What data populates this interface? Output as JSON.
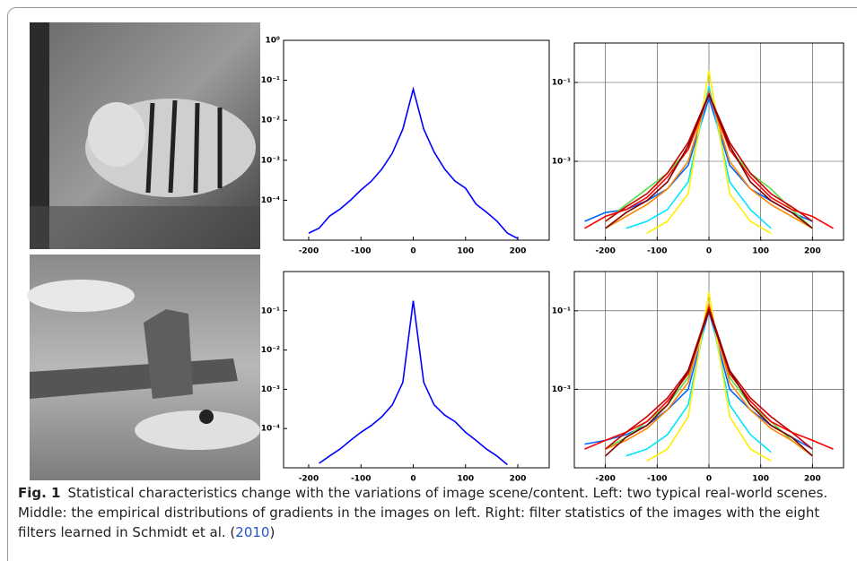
{
  "chart_data": [
    {
      "type": "line",
      "yscale": "log",
      "grid": false,
      "color": "#0000ff",
      "x": [
        -200,
        -180,
        -160,
        -140,
        -120,
        -100,
        -80,
        -60,
        -40,
        -20,
        0,
        20,
        40,
        60,
        80,
        100,
        120,
        140,
        160,
        180,
        200
      ],
      "values": [
        1.5e-05,
        2e-05,
        4e-05,
        6e-05,
        0.0001,
        0.00018,
        0.0003,
        0.0006,
        0.0015,
        0.006,
        0.06,
        0.006,
        0.0016,
        0.0006,
        0.0003,
        0.0002,
        8e-05,
        5e-05,
        3e-05,
        1.5e-05,
        1.1e-05
      ],
      "xlim": [
        -248,
        260
      ],
      "ylim": [
        1e-05,
        1
      ],
      "xticks": [
        -200,
        -100,
        0,
        100,
        200
      ],
      "yticks": [
        {
          "value": 1,
          "label": "10⁰"
        },
        {
          "value": 0.1,
          "label": "10⁻¹"
        },
        {
          "value": 0.01,
          "label": "10⁻²"
        },
        {
          "value": 0.001,
          "label": "10⁻³"
        },
        {
          "value": 0.0001,
          "label": "10⁻⁴"
        }
      ]
    },
    {
      "type": "line",
      "yscale": "log",
      "grid": true,
      "x": [
        -240,
        -200,
        -160,
        -120,
        -80,
        -40,
        0,
        40,
        80,
        120,
        160,
        200,
        240
      ],
      "series": [
        {
          "color": "#0066ff",
          "values": [
            3e-05,
            5e-05,
            6e-05,
            0.0001,
            0.0002,
            0.0008,
            0.04,
            0.0008,
            0.0002,
            0.0001,
            5e-05,
            3e-05,
            null
          ]
        },
        {
          "color": "#00e5ff",
          "values": [
            null,
            null,
            2e-05,
            3e-05,
            6e-05,
            0.0003,
            0.08,
            0.0003,
            6e-05,
            2e-05,
            null,
            null,
            null
          ]
        },
        {
          "color": "#55dd44",
          "values": [
            null,
            3e-05,
            8e-05,
            0.0002,
            0.0005,
            0.002,
            0.05,
            0.002,
            0.0005,
            0.0002,
            6e-05,
            2e-05,
            null
          ]
        },
        {
          "color": "#ffee00",
          "values": [
            null,
            null,
            null,
            1.5e-05,
            3e-05,
            0.00015,
            0.2,
            0.00015,
            3e-05,
            1.5e-05,
            null,
            null,
            null
          ]
        },
        {
          "color": "#ff8800",
          "values": [
            null,
            2e-05,
            4e-05,
            8e-05,
            0.0002,
            0.001,
            0.06,
            0.001,
            0.0002,
            8e-05,
            4e-05,
            2e-05,
            null
          ]
        },
        {
          "color": "#ff0000",
          "values": [
            2e-05,
            4e-05,
            6e-05,
            0.00012,
            0.0004,
            0.002,
            0.05,
            0.002,
            0.0004,
            0.00012,
            6e-05,
            4e-05,
            2e-05
          ]
        },
        {
          "color": "#cc0000",
          "values": [
            null,
            3e-05,
            7e-05,
            0.00015,
            0.0005,
            0.003,
            0.05,
            0.003,
            0.0005,
            0.00015,
            7e-05,
            3e-05,
            null
          ]
        },
        {
          "color": "#800000",
          "values": [
            null,
            2e-05,
            5e-05,
            0.0001,
            0.0003,
            0.0025,
            0.05,
            0.0025,
            0.0003,
            0.0001,
            5e-05,
            2e-05,
            null
          ]
        }
      ],
      "xlim": [
        -260,
        260
      ],
      "ylim": [
        1e-05,
        1
      ],
      "xticks": [
        -200,
        -100,
        0,
        100,
        200
      ],
      "yticks": [
        {
          "value": 0.1,
          "label": "10⁻¹"
        },
        {
          "value": 0.001,
          "label": "10⁻³"
        }
      ]
    },
    {
      "type": "line",
      "yscale": "log",
      "grid": false,
      "color": "#0000ff",
      "x": [
        -200,
        -180,
        -160,
        -140,
        -120,
        -100,
        -80,
        -60,
        -40,
        -20,
        0,
        20,
        40,
        60,
        80,
        100,
        120,
        140,
        160,
        180,
        200
      ],
      "values": [
        null,
        1.3e-05,
        2e-05,
        3e-05,
        5e-05,
        8e-05,
        0.00012,
        0.0002,
        0.0004,
        0.0015,
        0.18,
        0.0015,
        0.0004,
        0.00022,
        0.00015,
        8e-05,
        5e-05,
        3e-05,
        2e-05,
        1.2e-05,
        null
      ],
      "xlim": [
        -248,
        260
      ],
      "ylim": [
        1e-05,
        1
      ],
      "xticks": [
        -200,
        -100,
        0,
        100,
        200
      ],
      "yticks": [
        {
          "value": 0.1,
          "label": "10⁻¹"
        },
        {
          "value": 0.01,
          "label": "10⁻²"
        },
        {
          "value": 0.001,
          "label": "10⁻³"
        },
        {
          "value": 0.0001,
          "label": "10⁻⁴"
        }
      ]
    },
    {
      "type": "line",
      "yscale": "log",
      "grid": true,
      "x": [
        -240,
        -200,
        -160,
        -120,
        -80,
        -40,
        0,
        40,
        80,
        120,
        160,
        200,
        240
      ],
      "series": [
        {
          "color": "#0066ff",
          "values": [
            4e-05,
            5e-05,
            7e-05,
            0.00012,
            0.0003,
            0.001,
            0.1,
            0.001,
            0.0003,
            0.00012,
            6e-05,
            3e-05,
            null
          ]
        },
        {
          "color": "#00e5ff",
          "values": [
            null,
            null,
            2e-05,
            3e-05,
            7e-05,
            0.0004,
            0.15,
            0.0004,
            7e-05,
            2.5e-05,
            null,
            null,
            null
          ]
        },
        {
          "color": "#55dd44",
          "values": [
            null,
            3e-05,
            6e-05,
            0.00015,
            0.0004,
            0.002,
            0.12,
            0.002,
            0.0004,
            0.00015,
            5e-05,
            2e-05,
            null
          ]
        },
        {
          "color": "#ffee00",
          "values": [
            null,
            null,
            null,
            1.5e-05,
            3e-05,
            0.0002,
            0.3,
            0.0002,
            3e-05,
            1.5e-05,
            null,
            null,
            null
          ]
        },
        {
          "color": "#ff8800",
          "values": [
            null,
            3e-05,
            5e-05,
            0.0001,
            0.0003,
            0.0015,
            0.15,
            0.0015,
            0.0003,
            0.0001,
            5e-05,
            2e-05,
            null
          ]
        },
        {
          "color": "#ff0000",
          "values": [
            3e-05,
            5e-05,
            8e-05,
            0.00015,
            0.0005,
            0.0025,
            0.1,
            0.0025,
            0.0005,
            0.00015,
            8e-05,
            5e-05,
            3e-05
          ]
        },
        {
          "color": "#cc0000",
          "values": [
            null,
            3e-05,
            8e-05,
            0.0002,
            0.0006,
            0.003,
            0.12,
            0.003,
            0.0006,
            0.0002,
            8e-05,
            3e-05,
            null
          ]
        },
        {
          "color": "#800000",
          "values": [
            null,
            2e-05,
            6e-05,
            0.00012,
            0.0004,
            0.003,
            0.1,
            0.003,
            0.0004,
            0.00012,
            6e-05,
            2e-05,
            null
          ]
        }
      ],
      "xlim": [
        -260,
        260
      ],
      "ylim": [
        1e-05,
        1
      ],
      "xticks": [
        -200,
        -100,
        0,
        100,
        200
      ],
      "yticks": [
        {
          "value": 0.1,
          "label": "10⁻¹"
        },
        {
          "value": 0.001,
          "label": "10⁻³"
        }
      ]
    }
  ],
  "caption": {
    "label": "Fig. 1",
    "text": "Statistical characteristics change with the variations of image scene/content. Left: two typical real-world scenes. Middle: the empirical distributions of gradients in the images on left. Right: filter statistics of the images with the eight filters learned in Schmidt et al. (",
    "citation": "2010",
    "tail": ")"
  }
}
